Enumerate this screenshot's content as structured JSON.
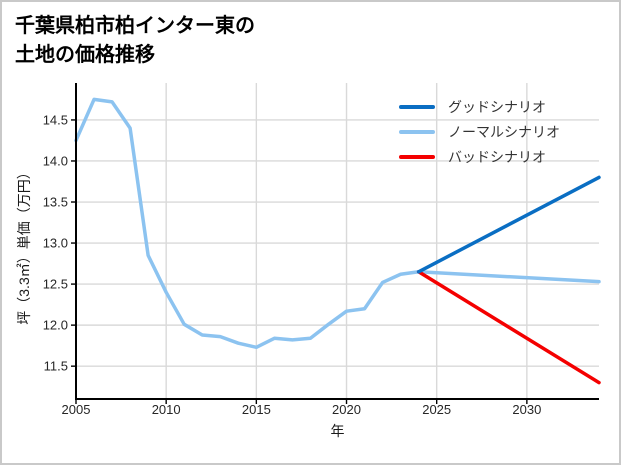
{
  "page": {
    "background": "#ffffff",
    "border_color": "#c9c9c9"
  },
  "title": {
    "line1": "千葉県柏市柏インター東の",
    "line2": "土地の価格推移"
  },
  "chart_data": {
    "type": "line",
    "title": "千葉県柏市柏インター東の土地の価格推移",
    "xlabel": "年",
    "ylabel": "坪（3.3㎡）単価（万円）",
    "xlim": [
      2005,
      2034
    ],
    "ylim": [
      11.1,
      14.95
    ],
    "grid": true,
    "grid_color": "#d9d9d9",
    "spine_color": "#000000",
    "tick_label_color": "#262626",
    "x_ticks": {
      "values": [
        2005,
        2010,
        2015,
        2020,
        2025,
        2030
      ],
      "labels": [
        "2005",
        "2010",
        "2015",
        "2020",
        "2025",
        "2030"
      ]
    },
    "y_ticks": {
      "values": [
        11.5,
        12.0,
        12.5,
        13.0,
        13.5,
        14.0,
        14.5
      ],
      "labels": [
        "11.5",
        "12.0",
        "12.5",
        "13.0",
        "13.5",
        "14.0",
        "14.5"
      ]
    },
    "legend": {
      "position": "upper right",
      "frame": false
    },
    "series": [
      {
        "name": "グッドシナリオ",
        "color": "#0a6ec3",
        "x": [
          2024,
          2034
        ],
        "y": [
          12.65,
          13.8
        ]
      },
      {
        "name": "ノーマルシナリオ",
        "color": "#8cc3f0",
        "x": [
          2024,
          2034
        ],
        "y": [
          12.65,
          12.53
        ]
      },
      {
        "name": "バッドシナリオ",
        "color": "#f40000",
        "x": [
          2024,
          2034
        ],
        "y": [
          12.65,
          11.3
        ]
      }
    ],
    "history": {
      "color": "#8cc3f0",
      "x": [
        2005,
        2006,
        2007,
        2008,
        2009,
        2010,
        2011,
        2012,
        2013,
        2014,
        2015,
        2016,
        2017,
        2018,
        2019,
        2020,
        2021,
        2022,
        2023,
        2024
      ],
      "y": [
        14.25,
        14.75,
        14.72,
        14.4,
        12.85,
        12.4,
        12.01,
        11.88,
        11.86,
        11.78,
        11.73,
        11.84,
        11.82,
        11.84,
        12.01,
        12.17,
        12.2,
        12.52,
        12.62,
        12.65
      ]
    }
  }
}
